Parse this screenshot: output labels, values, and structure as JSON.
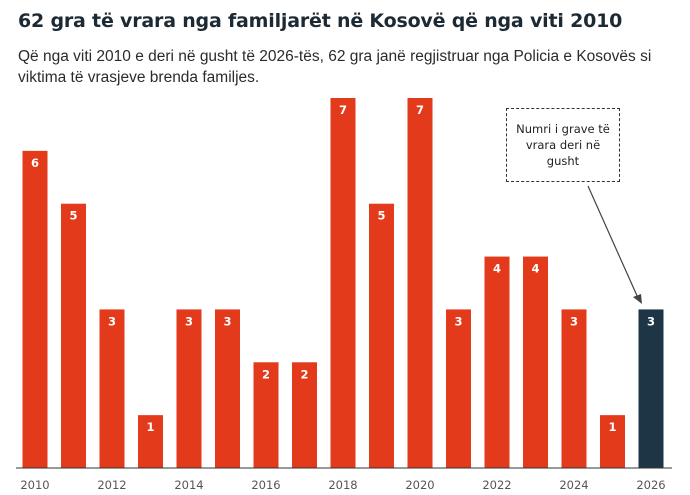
{
  "title": "62 gra të vrara nga familjarët në Kosovë që nga viti 2010",
  "subtitle": "Që nga viti 2010 e deri në gusht të 2026-tës, 62 gra janë regjistruar nga Policia e Kosovës si viktima të vrasjeve brenda familjes.",
  "annotation": "Numri i grave të vrara deri në gusht",
  "colors": {
    "bar": "#e23a1b",
    "highlight": "#1e3545",
    "axis": "#333333"
  },
  "chart_data": {
    "type": "bar",
    "title": "62 gra të vrara nga familjarët në Kosovë që nga viti 2010",
    "categories": [
      2010,
      2011,
      2012,
      2013,
      2014,
      2015,
      2016,
      2017,
      2018,
      2019,
      2020,
      2021,
      2022,
      2023,
      2024,
      2025,
      2026
    ],
    "values": [
      6,
      5,
      3,
      1,
      3,
      3,
      2,
      2,
      7,
      5,
      7,
      3,
      4,
      4,
      3,
      1,
      3
    ],
    "tick_labels": [
      "2010",
      "2012",
      "2014",
      "2016",
      "2018",
      "2020",
      "2022",
      "2024",
      "2026"
    ],
    "highlighted_category": 2026,
    "data_labels": true,
    "ylim": [
      0,
      7
    ],
    "grid": false,
    "legend": "none"
  }
}
